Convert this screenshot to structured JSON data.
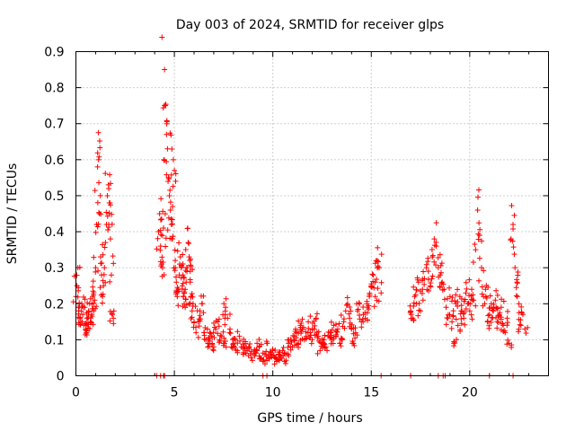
{
  "chart_data": {
    "type": "scatter",
    "title": "Day 003 of 2024, SRMTID for receiver glps",
    "xlabel": "GPS time / hours",
    "ylabel": "SRMTID / TECUs",
    "xlim": [
      0,
      24
    ],
    "ylim": [
      0,
      0.9
    ],
    "xticks": [
      0,
      5,
      10,
      15,
      20
    ],
    "yticks": [
      0,
      0.1,
      0.2,
      0.3,
      0.4,
      0.5,
      0.6,
      0.7,
      0.8,
      0.9
    ],
    "xtick_labels": [
      "0",
      "5",
      "10",
      "15",
      "20"
    ],
    "ytick_labels": [
      "0",
      "0.1",
      "0.2",
      "0.3",
      "0.4",
      "0.5",
      "0.6",
      "0.7",
      "0.8",
      "0.9"
    ],
    "grid": true,
    "marker": "+",
    "color": "#ff0000",
    "series": [
      {
        "name": "SRMTID",
        "x": [
          0.0,
          0.05,
          0.1,
          0.15,
          0.2,
          0.25,
          0.3,
          0.35,
          0.4,
          0.45,
          0.5,
          0.55,
          0.6,
          0.65,
          0.7,
          0.75,
          0.8,
          0.85,
          0.9,
          0.95,
          1.0,
          1.05,
          1.1,
          1.15,
          1.2,
          1.25,
          1.3,
          1.35,
          1.4,
          1.45,
          1.5,
          1.55,
          1.6,
          1.65,
          1.7,
          1.75,
          1.8,
          1.85,
          1.9,
          4.2,
          4.25,
          4.3,
          4.35,
          4.4,
          4.45,
          4.5,
          4.55,
          4.6,
          4.65,
          4.7,
          4.75,
          4.8,
          4.85,
          4.9,
          4.95,
          5.0,
          5.05,
          5.1,
          5.15,
          5.2,
          5.25,
          5.3,
          5.35,
          5.4,
          5.45,
          5.5,
          5.55,
          5.6,
          5.65,
          5.7,
          5.75,
          5.8,
          5.85,
          5.9,
          5.95,
          6.0,
          6.1,
          6.2,
          6.3,
          6.4,
          6.5,
          6.6,
          6.7,
          6.8,
          6.9,
          7.0,
          7.1,
          7.2,
          7.3,
          7.4,
          7.5,
          7.6,
          7.7,
          7.8,
          7.9,
          8.0,
          8.1,
          8.2,
          8.3,
          8.4,
          8.5,
          8.6,
          8.7,
          8.8,
          8.9,
          9.0,
          9.1,
          9.2,
          9.3,
          9.4,
          9.5,
          9.6,
          9.7,
          9.8,
          9.9,
          10.0,
          10.1,
          10.2,
          10.3,
          10.4,
          10.5,
          10.6,
          10.7,
          10.8,
          10.9,
          11.0,
          11.1,
          11.2,
          11.3,
          11.4,
          11.5,
          11.6,
          11.7,
          11.8,
          11.9,
          12.0,
          12.1,
          12.2,
          12.3,
          12.4,
          12.5,
          12.6,
          12.7,
          12.8,
          12.9,
          13.0,
          13.1,
          13.2,
          13.3,
          13.4,
          13.5,
          13.6,
          13.7,
          13.8,
          13.9,
          14.0,
          14.1,
          14.2,
          14.3,
          14.4,
          14.5,
          14.6,
          14.7,
          14.8,
          14.9,
          15.0,
          15.1,
          15.2,
          15.3,
          15.4,
          15.5,
          17.0,
          17.1,
          17.2,
          17.3,
          17.4,
          17.5,
          17.6,
          17.7,
          17.8,
          17.9,
          18.0,
          18.1,
          18.2,
          18.3,
          18.4,
          18.5,
          18.6,
          18.7,
          18.8,
          18.9,
          19.0,
          19.1,
          19.2,
          19.3,
          19.4,
          19.5,
          19.6,
          19.7,
          19.8,
          19.9,
          20.0,
          20.1,
          20.2,
          20.3,
          20.4,
          20.5,
          20.6,
          20.7,
          20.8,
          20.9,
          21.0,
          21.1,
          21.2,
          21.3,
          21.4,
          21.5,
          21.6,
          21.7,
          21.8,
          21.9,
          22.0,
          22.1,
          22.2,
          22.3,
          22.4,
          22.5,
          22.6,
          22.7,
          22.8
        ],
        "y": [
          0.22,
          0.25,
          0.3,
          0.18,
          0.16,
          0.15,
          0.2,
          0.17,
          0.14,
          0.19,
          0.13,
          0.12,
          0.16,
          0.18,
          0.2,
          0.15,
          0.17,
          0.22,
          0.18,
          0.21,
          0.3,
          0.42,
          0.58,
          0.6,
          0.45,
          0.33,
          0.28,
          0.22,
          0.25,
          0.3,
          0.37,
          0.42,
          0.5,
          0.53,
          0.48,
          0.38,
          0.28,
          0.17,
          0.16,
          0.4,
          0.45,
          0.36,
          0.31,
          0.3,
          0.41,
          0.85,
          0.75,
          0.67,
          0.63,
          0.55,
          0.5,
          0.46,
          0.42,
          0.38,
          0.6,
          0.57,
          0.3,
          0.26,
          0.22,
          0.24,
          0.28,
          0.33,
          0.3,
          0.25,
          0.22,
          0.2,
          0.24,
          0.26,
          0.3,
          0.37,
          0.33,
          0.29,
          0.22,
          0.18,
          0.2,
          0.15,
          0.12,
          0.15,
          0.18,
          0.2,
          0.12,
          0.1,
          0.09,
          0.12,
          0.11,
          0.08,
          0.13,
          0.15,
          0.1,
          0.11,
          0.09,
          0.19,
          0.16,
          0.12,
          0.08,
          0.09,
          0.1,
          0.07,
          0.11,
          0.08,
          0.06,
          0.09,
          0.07,
          0.08,
          0.05,
          0.06,
          0.07,
          0.09,
          0.08,
          0.05,
          0.04,
          0.06,
          0.09,
          0.05,
          0.06,
          0.07,
          0.05,
          0.04,
          0.06,
          0.05,
          0.07,
          0.04,
          0.06,
          0.09,
          0.1,
          0.08,
          0.11,
          0.12,
          0.09,
          0.14,
          0.13,
          0.1,
          0.11,
          0.15,
          0.12,
          0.1,
          0.13,
          0.16,
          0.11,
          0.07,
          0.09,
          0.1,
          0.08,
          0.11,
          0.12,
          0.1,
          0.14,
          0.11,
          0.13,
          0.09,
          0.1,
          0.15,
          0.18,
          0.2,
          0.16,
          0.13,
          0.09,
          0.12,
          0.18,
          0.2,
          0.15,
          0.17,
          0.16,
          0.19,
          0.22,
          0.25,
          0.28,
          0.22,
          0.32,
          0.3,
          0.23,
          0.18,
          0.16,
          0.22,
          0.2,
          0.26,
          0.18,
          0.24,
          0.27,
          0.3,
          0.29,
          0.25,
          0.33,
          0.38,
          0.36,
          0.3,
          0.28,
          0.26,
          0.24,
          0.19,
          0.16,
          0.22,
          0.15,
          0.09,
          0.2,
          0.14,
          0.22,
          0.18,
          0.16,
          0.23,
          0.2,
          0.18,
          0.24,
          0.21,
          0.35,
          0.46,
          0.39,
          0.3,
          0.22,
          0.24,
          0.15,
          0.17,
          0.2,
          0.18,
          0.21,
          0.15,
          0.17,
          0.19,
          0.14,
          0.12,
          0.16,
          0.09,
          0.38,
          0.42,
          0.3,
          0.26,
          0.2,
          0.14,
          0.17,
          0.13
        ],
        "zero_markers_x": [
          4.1,
          4.3,
          4.45,
          4.5,
          7.8,
          9.5,
          9.7,
          15.5,
          17.0,
          18.4,
          18.65,
          18.75,
          21.0,
          22.2
        ]
      }
    ]
  }
}
